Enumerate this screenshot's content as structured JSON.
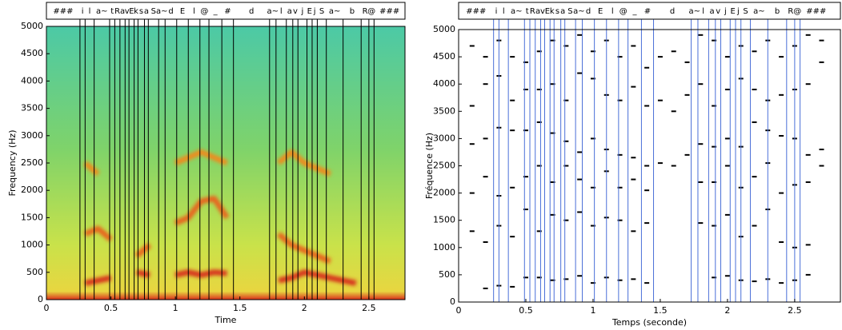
{
  "segmentation": {
    "labels": [
      "###",
      "i",
      "l",
      "a~",
      "t",
      "R",
      "a",
      "v",
      "E",
      "k",
      "s",
      "a",
      "S",
      "a~",
      "d",
      "E",
      "l",
      "@",
      "_",
      "#",
      "d",
      "a~",
      "l",
      "a",
      "v",
      "j",
      "E",
      "j",
      "S",
      "a~",
      "b",
      "R",
      "@",
      "###"
    ],
    "boundaries": [
      0,
      0.26,
      0.3,
      0.37,
      0.49,
      0.53,
      0.57,
      0.61,
      0.64,
      0.68,
      0.71,
      0.76,
      0.79,
      0.87,
      0.92,
      1.01,
      1.1,
      1.19,
      1.26,
      1.36,
      1.45,
      1.73,
      1.78,
      1.86,
      1.91,
      1.95,
      2.02,
      2.06,
      2.1,
      2.17,
      2.3,
      2.44,
      2.5,
      2.54,
      2.78
    ]
  },
  "chart_data": [
    {
      "type": "spectrogram",
      "x_label": "Time",
      "y_label": "Frequency (Hz)",
      "xlim": [
        0,
        2.78
      ],
      "ylim": [
        0,
        5000
      ],
      "xticks": [
        0,
        0.5,
        1,
        1.5,
        2,
        2.5
      ],
      "yticks": [
        0,
        500,
        1000,
        1500,
        2000,
        2500,
        3000,
        3500,
        4000,
        4500,
        5000
      ],
      "x": [
        0.3,
        0.4,
        0.5,
        0.6,
        0.7,
        0.8,
        0.9,
        1.0,
        1.1,
        1.2,
        1.3,
        1.4,
        1.5,
        1.6,
        1.7,
        1.8,
        1.9,
        2.0,
        2.1,
        2.2,
        2.3,
        2.4
      ],
      "series": [
        {
          "color": "#d7301f",
          "values": [
            300,
            350,
            400,
            null,
            500,
            450,
            null,
            450,
            500,
            450,
            500,
            480,
            null,
            null,
            null,
            350,
            400,
            500,
            450,
            400,
            350,
            300
          ]
        },
        {
          "color": "#e8641c",
          "values": [
            1200,
            1300,
            1100,
            null,
            800,
            1000,
            null,
            1400,
            1500,
            1800,
            1850,
            1500,
            null,
            null,
            null,
            1200,
            1000,
            900,
            800,
            700,
            null,
            800
          ]
        },
        {
          "color": "#f08a1a",
          "values": [
            2500,
            2300,
            null,
            null,
            null,
            null,
            null,
            2500,
            2600,
            2700,
            2600,
            2500,
            null,
            null,
            null,
            2500,
            2700,
            2500,
            2400,
            2300,
            null,
            2500
          ]
        }
      ]
    },
    {
      "type": "scatter",
      "x_label": "Temps (seconde)",
      "y_label": "Fréquence (Hz)",
      "xlim": [
        0,
        2.84
      ],
      "ylim": [
        0,
        5000
      ],
      "xticks": [
        0,
        0.5,
        1,
        1.5,
        2,
        2.5
      ],
      "yticks": [
        0,
        500,
        1000,
        1500,
        2000,
        2500,
        3000,
        3500,
        4000,
        4500,
        5000
      ],
      "boundary_color": "#4a6fd8",
      "x": [
        0.1,
        0.2,
        0.3,
        0.4,
        0.5,
        0.6,
        0.7,
        0.8,
        0.9,
        1.0,
        1.1,
        1.2,
        1.3,
        1.4,
        1.5,
        1.6,
        1.7,
        1.8,
        1.9,
        2.0,
        2.1,
        2.2,
        2.3,
        2.4,
        2.5,
        2.6,
        2.7
      ],
      "series": [
        {
          "color": "#000000",
          "values": [
            null,
            250,
            300,
            280,
            450,
            450,
            400,
            420,
            480,
            350,
            450,
            400,
            420,
            350,
            null,
            null,
            null,
            null,
            450,
            480,
            400,
            380,
            420,
            350,
            400,
            500,
            null
          ]
        },
        {
          "color": "#000000",
          "values": [
            1300,
            1100,
            1400,
            1200,
            1700,
            1300,
            1600,
            1500,
            1650,
            1400,
            1550,
            1500,
            1300,
            1450,
            null,
            null,
            null,
            1450,
            1400,
            1600,
            1200,
            1400,
            1700,
            1100,
            1000,
            1050,
            null
          ]
        },
        {
          "color": "#000000",
          "values": [
            2000,
            2300,
            1950,
            2100,
            2300,
            2500,
            2200,
            2500,
            2250,
            2100,
            2400,
            2100,
            2250,
            2050,
            null,
            null,
            null,
            2200,
            2200,
            2500,
            2100,
            2300,
            2550,
            2000,
            2150,
            2200,
            2500
          ]
        },
        {
          "color": "#000000",
          "values": [
            2900,
            3000,
            3200,
            3150,
            3150,
            3300,
            3100,
            2950,
            2750,
            3000,
            2800,
            2700,
            2650,
            2500,
            2550,
            2500,
            2700,
            2900,
            2850,
            3000,
            2850,
            3300,
            3150,
            3050,
            3000,
            2700,
            2800
          ]
        },
        {
          "color": "#000000",
          "values": [
            3600,
            4000,
            4150,
            3700,
            3900,
            3900,
            4000,
            3700,
            4200,
            4100,
            3800,
            3700,
            3950,
            3600,
            3700,
            3500,
            3800,
            4000,
            3600,
            3900,
            4100,
            3900,
            3700,
            3800,
            3900,
            4000,
            4400
          ]
        },
        {
          "color": "#000000",
          "values": [
            4700,
            4500,
            4800,
            4500,
            4400,
            4600,
            4800,
            4700,
            4900,
            4600,
            4800,
            4500,
            4700,
            4300,
            4500,
            4600,
            4400,
            4900,
            4800,
            4500,
            4700,
            4600,
            4800,
            4500,
            4700,
            4900,
            4800
          ]
        }
      ]
    }
  ]
}
